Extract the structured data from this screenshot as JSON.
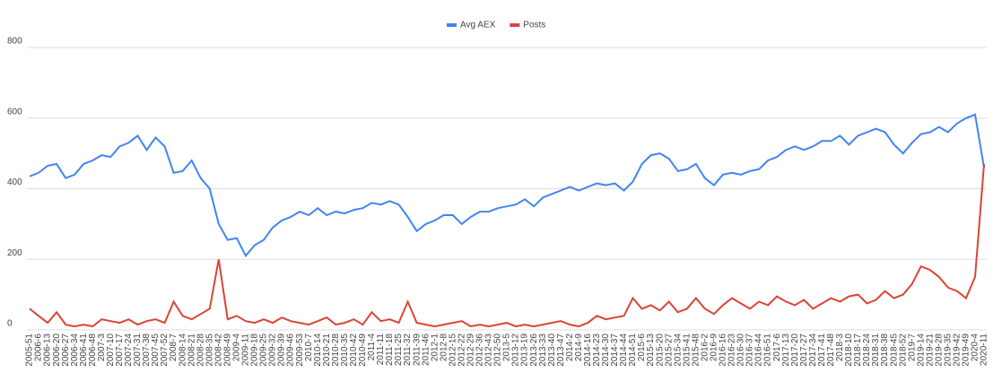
{
  "chart_data": {
    "type": "line",
    "categories": [
      "2005-51",
      "2006-6",
      "2006-13",
      "2006-20",
      "2006-27",
      "2006-34",
      "2006-41",
      "2006-48",
      "2007-3",
      "2007-10",
      "2007-17",
      "2007-24",
      "2007-31",
      "2007-38",
      "2007-45",
      "2007-52",
      "2008-7",
      "2008-14",
      "2008-21",
      "2008-28",
      "2008-35",
      "2008-42",
      "2008-49",
      "2009-4",
      "2009-11",
      "2009-18",
      "2009-25",
      "2009-32",
      "2009-39",
      "2009-46",
      "2009-53",
      "2010-7",
      "2010-14",
      "2010-21",
      "2010-28",
      "2010-35",
      "2010-42",
      "2010-49",
      "2011-4",
      "2011-11",
      "2011-18",
      "2011-25",
      "2011-32",
      "2011-39",
      "2011-46",
      "2012-1",
      "2012-8",
      "2012-15",
      "2012-22",
      "2012-29",
      "2012-36",
      "2012-43",
      "2012-50",
      "2013-5",
      "2013-12",
      "2013-19",
      "2013-26",
      "2013-33",
      "2013-40",
      "2013-47",
      "2014-2",
      "2014-9",
      "2014-16",
      "2014-23",
      "2014-30",
      "2014-37",
      "2014-44",
      "2014-51",
      "2015-6",
      "2015-13",
      "2015-20",
      "2015-27",
      "2015-34",
      "2015-41",
      "2015-48",
      "2016-2",
      "2016-9",
      "2016-16",
      "2016-23",
      "2016-30",
      "2016-37",
      "2016-44",
      "2016-51",
      "2017-6",
      "2017-13",
      "2017-20",
      "2017-27",
      "2017-34",
      "2017-41",
      "2017-48",
      "2018-3",
      "2018-10",
      "2018-17",
      "2018-24",
      "2018-31",
      "2018-38",
      "2018-45",
      "2018-52",
      "2019-7",
      "2019-14",
      "2019-21",
      "2019-28",
      "2019-35",
      "2019-42",
      "2019-49",
      "2020-4",
      "2020-11"
    ],
    "series": [
      {
        "name": "Avg AEX",
        "color": "#4285f4",
        "values": [
          435,
          445,
          465,
          470,
          430,
          440,
          470,
          480,
          495,
          490,
          520,
          530,
          550,
          510,
          545,
          520,
          445,
          450,
          480,
          430,
          400,
          300,
          255,
          260,
          210,
          240,
          255,
          290,
          310,
          320,
          335,
          325,
          345,
          325,
          335,
          330,
          340,
          345,
          360,
          355,
          365,
          355,
          320,
          280,
          300,
          310,
          325,
          325,
          300,
          320,
          335,
          335,
          345,
          350,
          355,
          370,
          350,
          375,
          385,
          395,
          405,
          395,
          405,
          415,
          410,
          415,
          395,
          420,
          470,
          495,
          500,
          485,
          450,
          455,
          470,
          430,
          410,
          440,
          445,
          440,
          450,
          455,
          480,
          490,
          510,
          520,
          510,
          520,
          535,
          535,
          550,
          525,
          550,
          560,
          570,
          560,
          525,
          500,
          530,
          555,
          560,
          575,
          560,
          585,
          600,
          610,
          460
        ]
      },
      {
        "name": "Posts",
        "color": "#db4437",
        "values": [
          60,
          40,
          20,
          50,
          15,
          10,
          15,
          10,
          30,
          25,
          20,
          30,
          15,
          25,
          30,
          20,
          80,
          40,
          30,
          45,
          60,
          200,
          30,
          40,
          25,
          20,
          30,
          20,
          35,
          25,
          20,
          15,
          25,
          35,
          15,
          20,
          30,
          15,
          50,
          25,
          30,
          20,
          80,
          20,
          15,
          10,
          15,
          20,
          25,
          10,
          15,
          10,
          15,
          20,
          10,
          15,
          10,
          15,
          20,
          25,
          15,
          10,
          20,
          40,
          30,
          35,
          40,
          90,
          60,
          70,
          55,
          80,
          50,
          60,
          90,
          60,
          45,
          70,
          90,
          75,
          60,
          80,
          70,
          95,
          80,
          70,
          85,
          60,
          75,
          90,
          80,
          95,
          100,
          75,
          85,
          110,
          90,
          100,
          130,
          180,
          170,
          150,
          120,
          110,
          90,
          150,
          470
        ]
      }
    ],
    "ylim": [
      0,
      800
    ],
    "yticks": [
      0,
      200,
      400,
      600,
      800
    ],
    "grid": true,
    "legend": "top"
  }
}
